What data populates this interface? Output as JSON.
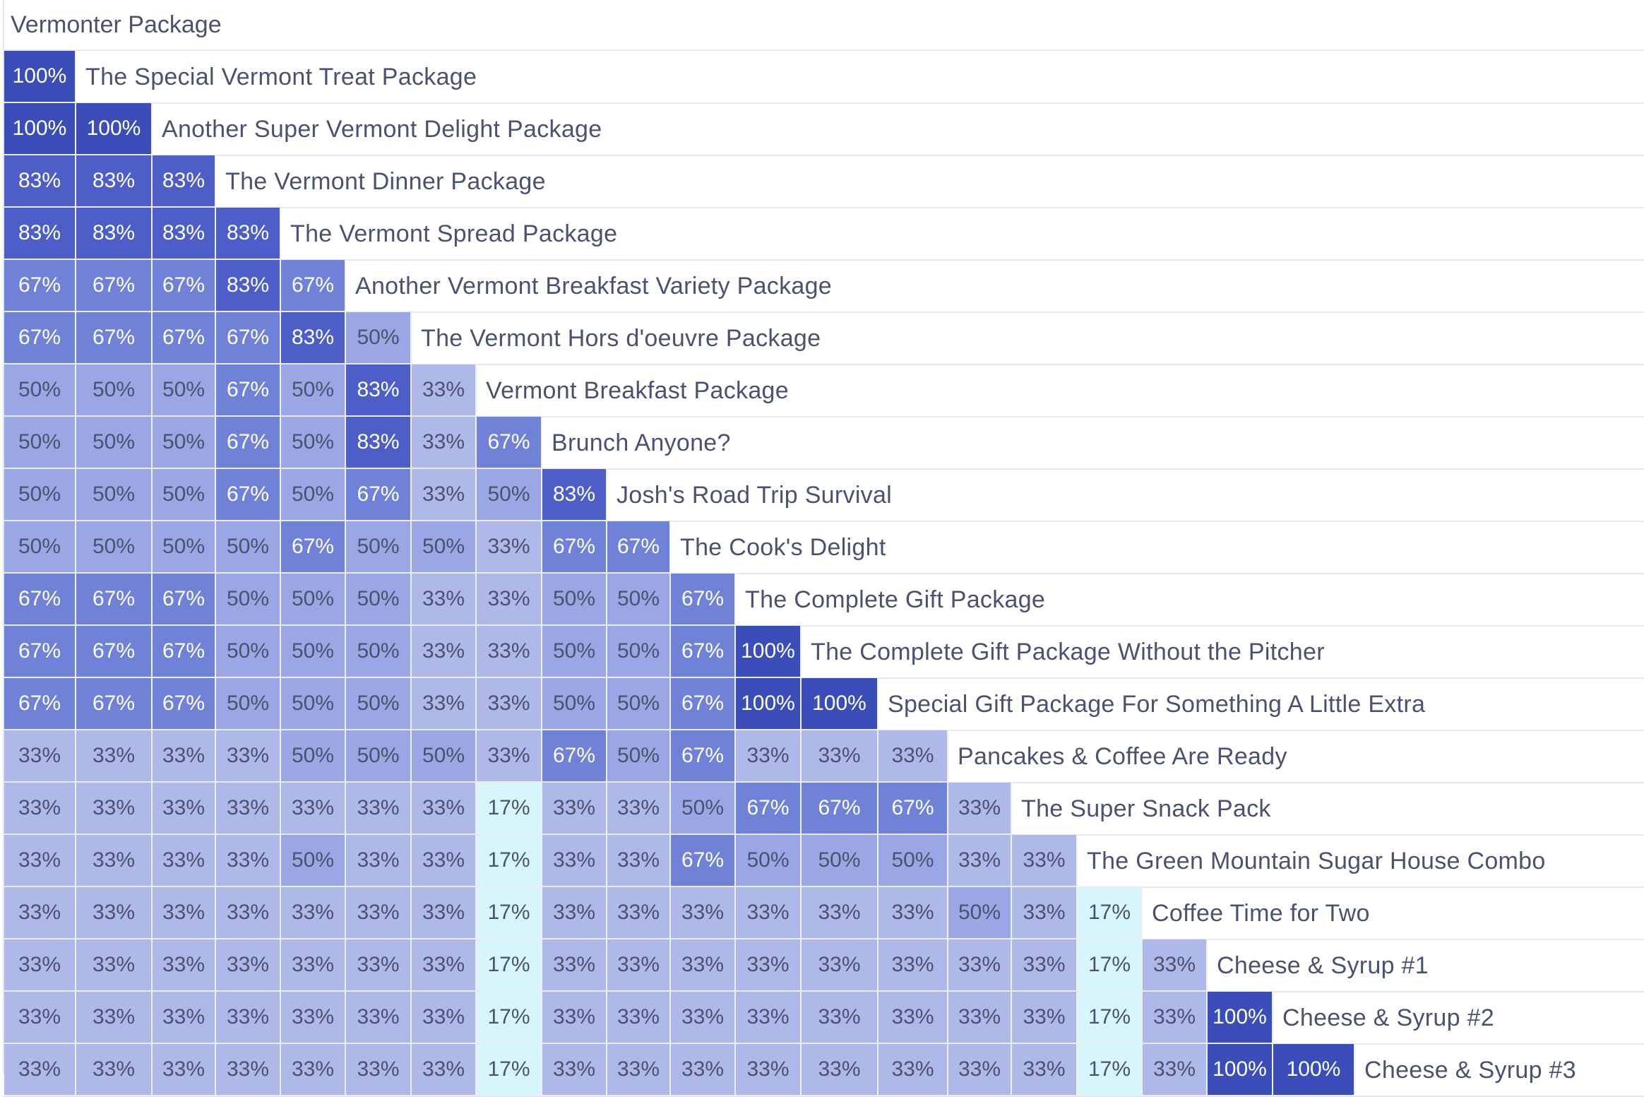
{
  "header": {
    "title": "Vermonter Package"
  },
  "legend": {
    "colors": {
      "17": "#d7f6fb",
      "33": "#aeb9ea",
      "50": "#9aa7e4",
      "67": "#7081d8",
      "83": "#4d5ec9",
      "100": "#3b4db8"
    }
  },
  "matrix": {
    "rows": [
      {
        "name": "The Special Vermont Treat Package",
        "values": [
          100
        ]
      },
      {
        "name": "Another Super Vermont Delight Package",
        "values": [
          100,
          100
        ]
      },
      {
        "name": "The Vermont Dinner Package",
        "values": [
          83,
          83,
          83
        ]
      },
      {
        "name": "The Vermont Spread Package",
        "values": [
          83,
          83,
          83,
          83
        ]
      },
      {
        "name": "Another Vermont Breakfast Variety Package",
        "values": [
          67,
          67,
          67,
          83,
          67
        ]
      },
      {
        "name": "The Vermont Hors d'oeuvre Package",
        "values": [
          67,
          67,
          67,
          67,
          83,
          50
        ]
      },
      {
        "name": "Vermont Breakfast Package",
        "values": [
          50,
          50,
          50,
          67,
          50,
          83,
          33
        ]
      },
      {
        "name": "Brunch Anyone?",
        "values": [
          50,
          50,
          50,
          67,
          50,
          83,
          33,
          67
        ]
      },
      {
        "name": "Josh's Road Trip Survival",
        "values": [
          50,
          50,
          50,
          67,
          50,
          67,
          33,
          50,
          83
        ]
      },
      {
        "name": "The Cook's Delight",
        "values": [
          50,
          50,
          50,
          50,
          67,
          50,
          50,
          33,
          67,
          67
        ]
      },
      {
        "name": "The Complete Gift Package",
        "values": [
          67,
          67,
          67,
          50,
          50,
          50,
          33,
          33,
          50,
          50,
          67
        ]
      },
      {
        "name": "The Complete Gift Package Without the Pitcher",
        "values": [
          67,
          67,
          67,
          50,
          50,
          50,
          33,
          33,
          50,
          50,
          67,
          100
        ]
      },
      {
        "name": "Special Gift Package For Something A Little Extra",
        "values": [
          67,
          67,
          67,
          50,
          50,
          50,
          33,
          33,
          50,
          50,
          67,
          100,
          100
        ]
      },
      {
        "name": "Pancakes & Coffee Are Ready",
        "values": [
          33,
          33,
          33,
          33,
          50,
          50,
          50,
          33,
          67,
          50,
          67,
          33,
          33,
          33
        ]
      },
      {
        "name": "The Super Snack Pack",
        "values": [
          33,
          33,
          33,
          33,
          33,
          33,
          33,
          17,
          33,
          33,
          50,
          67,
          67,
          67,
          33
        ]
      },
      {
        "name": "The Green Mountain Sugar House Combo",
        "values": [
          33,
          33,
          33,
          33,
          50,
          33,
          33,
          17,
          33,
          33,
          67,
          50,
          50,
          50,
          33,
          33
        ]
      },
      {
        "name": "Coffee Time for Two",
        "values": [
          33,
          33,
          33,
          33,
          33,
          33,
          33,
          17,
          33,
          33,
          33,
          33,
          33,
          33,
          50,
          33,
          17
        ]
      },
      {
        "name": "Cheese & Syrup #1",
        "values": [
          33,
          33,
          33,
          33,
          33,
          33,
          33,
          17,
          33,
          33,
          33,
          33,
          33,
          33,
          33,
          33,
          17,
          33
        ]
      },
      {
        "name": "Cheese & Syrup #2",
        "values": [
          33,
          33,
          33,
          33,
          33,
          33,
          33,
          17,
          33,
          33,
          33,
          33,
          33,
          33,
          33,
          33,
          17,
          33,
          100
        ]
      },
      {
        "name": "Cheese & Syrup #3",
        "values": [
          33,
          33,
          33,
          33,
          33,
          33,
          33,
          17,
          33,
          33,
          33,
          33,
          33,
          33,
          33,
          33,
          17,
          33,
          100,
          100
        ]
      }
    ]
  }
}
